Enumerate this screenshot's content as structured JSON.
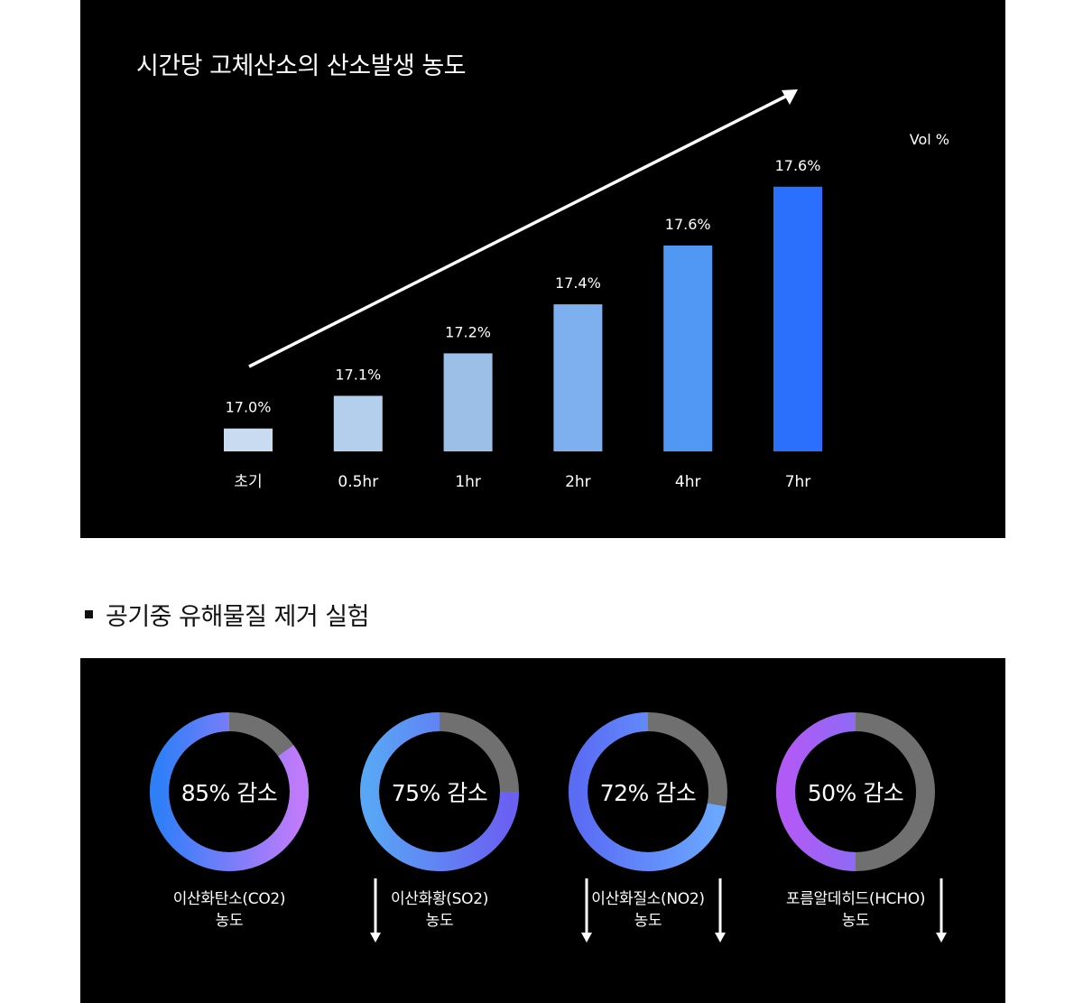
{
  "chart_data": {
    "type": "bar",
    "title": "시간당 고체산소의 산소발생 농도",
    "unit": "Vol %",
    "categories": [
      "초기",
      "0.5hr",
      "1hr",
      "2hr",
      "4hr",
      "7hr"
    ],
    "values": [
      17.0,
      17.1,
      17.2,
      17.4,
      17.6,
      17.6
    ],
    "value_labels": [
      "17.0%",
      "17.1%",
      "17.2%",
      "17.4%",
      "17.6%",
      "17.6%"
    ],
    "bar_levels": [
      0.07,
      0.17,
      0.3,
      0.45,
      0.63,
      0.81
    ],
    "colors": [
      "#c8dbf0",
      "#b3cfec",
      "#9bbfe6",
      "#7eb0ef",
      "#5198f5",
      "#2b70fc"
    ],
    "trend_arrow": true
  },
  "section": {
    "title": "공기중 유해물질 제거 실험"
  },
  "experiments": [
    {
      "center_text": "85% 감소",
      "percent": 85,
      "name": "이산화탄소(CO2)",
      "sub": "농도",
      "gradient": [
        "#2f7ff8",
        "#c07bfa"
      ]
    },
    {
      "center_text": "75% 감소",
      "percent": 75,
      "name": "이산화황(SO2)",
      "sub": "농도",
      "gradient": [
        "#58a6f5",
        "#6a60f2"
      ]
    },
    {
      "center_text": "72% 감소",
      "percent": 72,
      "name": "이산화질소(NO2)",
      "sub": "농도",
      "gradient": [
        "#5a6cf4",
        "#6aa8ff"
      ]
    },
    {
      "center_text": "50% 감소",
      "percent": 50,
      "name": "포름알데히드(HCHO)",
      "sub": "농도",
      "gradient": [
        "#b25af5",
        "#6a7bf5"
      ]
    }
  ],
  "colors": {
    "remaining_ring": "#707070",
    "panel_bg": "#000000"
  }
}
